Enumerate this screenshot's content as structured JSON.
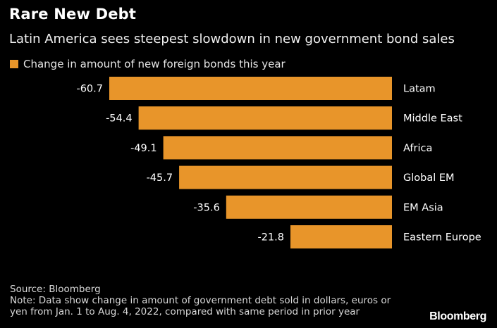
{
  "header": {
    "title": "Rare New Debt",
    "subtitle": "Latin America sees steepest slowdown in new government bond sales"
  },
  "legend": {
    "label": "Change in amount of new foreign bonds this year",
    "color": "#e8952a"
  },
  "chart_data": {
    "type": "bar",
    "orientation": "horizontal",
    "categories": [
      "Latam",
      "Middle East",
      "Africa",
      "Global EM",
      "EM Asia",
      "Eastern Europe"
    ],
    "series": [
      {
        "name": "Change in amount of new foreign bonds this year",
        "values": [
          -60.7,
          -54.4,
          -49.1,
          -45.7,
          -35.6,
          -21.8
        ],
        "labels": [
          "-60.7",
          "-54.4",
          "-49.1",
          "-45.7",
          "-35.6",
          "-21.8"
        ]
      }
    ],
    "bar_color": "#e8952a",
    "xlim": [
      -60.7,
      0
    ],
    "grid": false,
    "legend_position": "top-left"
  },
  "footer": {
    "source": "Source: Bloomberg",
    "note_line1": "Note: Data show change in amount of government debt sold in dollars, euros or",
    "note_line2": "yen from Jan. 1 to Aug. 4, 2022, compared with same period in prior year"
  },
  "brand": "Bloomberg"
}
